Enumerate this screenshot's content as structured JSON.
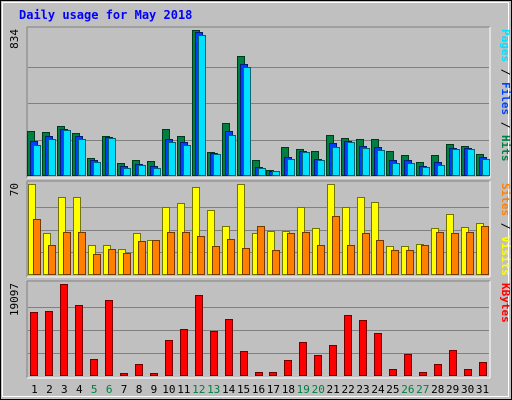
{
  "chart_data": {
    "type": "bar",
    "title": "Daily usage for May 2018",
    "categories": [
      "1",
      "2",
      "3",
      "4",
      "5",
      "6",
      "7",
      "8",
      "9",
      "10",
      "11",
      "12",
      "13",
      "14",
      "15",
      "16",
      "17",
      "18",
      "19",
      "20",
      "21",
      "22",
      "23",
      "24",
      "25",
      "26",
      "27",
      "28",
      "29",
      "30",
      "31"
    ],
    "weekend_days": [
      "5",
      "6",
      "12",
      "13",
      "19",
      "20",
      "26",
      "27"
    ],
    "panels": [
      {
        "id": "hits",
        "ymax_label": "834",
        "ylim": [
          0,
          834
        ],
        "axis_label_parts": [
          {
            "text": "Pages",
            "color": "#00E0FF"
          },
          {
            "text": " / ",
            "color": "#000000"
          },
          {
            "text": "Files",
            "color": "#0040FF"
          },
          {
            "text": " / ",
            "color": "#000000"
          },
          {
            "text": "Hits",
            "color": "#008040"
          }
        ],
        "series": [
          {
            "name": "Hits",
            "color": "#008040",
            "values": [
              258,
              254,
              284,
              245,
              105,
              227,
              76,
              92,
              87,
              271,
              227,
              834,
              137,
              303,
              683,
              92,
              37,
              163,
              152,
              145,
              233,
              218,
              213,
              213,
              143,
              121,
              81,
              121,
              183,
              172,
              126
            ]
          },
          {
            "name": "Files",
            "color": "#0040FF",
            "values": [
              198,
              228,
              270,
              227,
              90,
              222,
              55,
              70,
              56,
              214,
              193,
              820,
              129,
              255,
              640,
              53,
              28,
              108,
              144,
              97,
              186,
              201,
              171,
              163,
              94,
              94,
              57,
              81,
              160,
              160,
              108
            ]
          },
          {
            "name": "Pages",
            "color": "#00E0FF",
            "values": [
              179,
              213,
              262,
              214,
              80,
              216,
              47,
              63,
              46,
              197,
              175,
              805,
              127,
              236,
              625,
              44,
              26,
              99,
              138,
              90,
              165,
              194,
              161,
              151,
              76,
              76,
              50,
              63,
              153,
              154,
              99
            ]
          }
        ]
      },
      {
        "id": "visits",
        "ymax_label": "70",
        "ylim": [
          0,
          70
        ],
        "axis_label_parts": [
          {
            "text": "Sites",
            "color": "#FF8000"
          },
          {
            "text": " / ",
            "color": "#000000"
          },
          {
            "text": "Visits",
            "color": "#FFFF00"
          }
        ],
        "series": [
          {
            "name": "Visits",
            "color": "#FFFF00",
            "values": [
              70,
              32,
              60,
              60,
              23,
              23,
              20,
              32,
              27,
              52,
              55,
              68,
              50,
              38,
              70,
              32,
              34,
              34,
              52,
              36,
              70,
              52,
              60,
              56,
              22,
              22,
              24,
              36,
              47,
              37,
              40
            ]
          },
          {
            "name": "Sites",
            "color": "#FF8000",
            "values": [
              43,
              23,
              33,
              33,
              16,
              20,
              17,
              26,
              27,
              33,
              33,
              30,
              22,
              28,
              21,
              38,
              19,
              32,
              33,
              23,
              45,
              23,
              32,
              27,
              19,
              19,
              23,
              33,
              32,
              33,
              38
            ]
          }
        ]
      },
      {
        "id": "kbytes",
        "ymax_label": "19097",
        "ylim": [
          0,
          19097
        ],
        "axis_label_parts": [
          {
            "text": "KBytes",
            "color": "#FF0000"
          }
        ],
        "series": [
          {
            "name": "KBytes",
            "color": "#FF0000",
            "values": [
              13250,
              13510,
              19097,
              14720,
              3620,
              15810,
              550,
              2400,
              700,
              7400,
              9700,
              16900,
              9400,
              11760,
              5200,
              750,
              740,
              3400,
              7000,
              4440,
              6500,
              12700,
              11600,
              9000,
              1390,
              4600,
              740,
              2400,
              5400,
              1440,
              2970
            ]
          }
        ]
      }
    ]
  }
}
